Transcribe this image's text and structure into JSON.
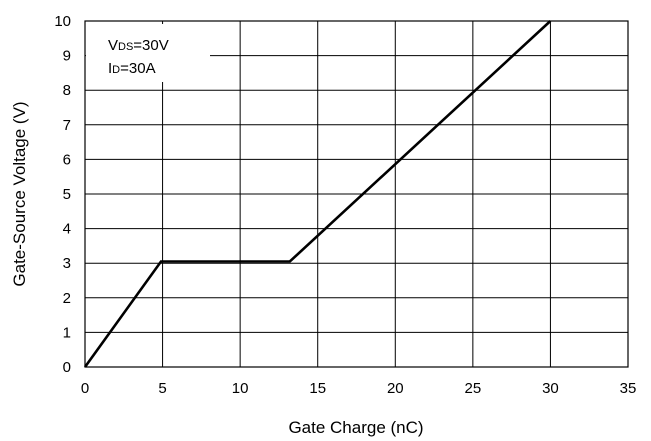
{
  "chart_data": {
    "type": "line",
    "xlabel": "Gate Charge (nC)",
    "ylabel": "Gate-Source Voltage (V)",
    "xlim": [
      0,
      35
    ],
    "ylim": [
      0,
      10
    ],
    "x_ticks": [
      "0",
      "5",
      "10",
      "15",
      "20",
      "25",
      "30",
      "35"
    ],
    "y_ticks": [
      "0",
      "1",
      "2",
      "3",
      "4",
      "5",
      "6",
      "7",
      "8",
      "9",
      "10"
    ],
    "grid": true,
    "annotation": {
      "line1": {
        "prefix": "V",
        "sub": "DS",
        "suffix": "=30V"
      },
      "line2": {
        "prefix": "I",
        "sub": "D",
        "suffix": "=30A"
      }
    },
    "series": [
      {
        "x": [
          0,
          4.9,
          13.2,
          30
        ],
        "y": [
          0,
          3.05,
          3.05,
          10
        ]
      }
    ],
    "colors": {
      "line": "#000000",
      "grid": "#000000",
      "background": "#ffffff"
    }
  }
}
